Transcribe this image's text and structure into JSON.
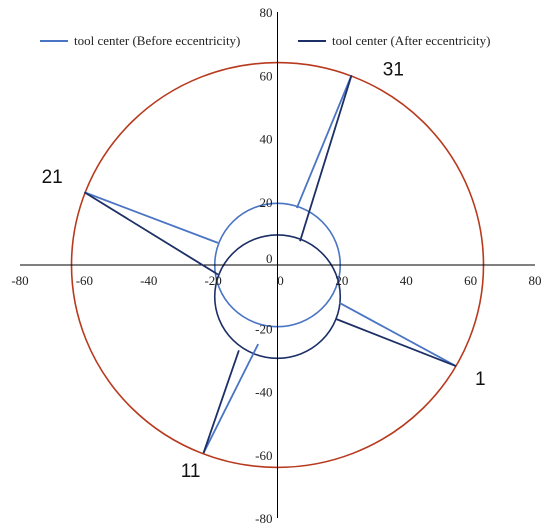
{
  "chart_data": {
    "type": "line",
    "xlim": [
      -80,
      80
    ],
    "ylim": [
      -80,
      80
    ],
    "x_ticks": [
      -80,
      -60,
      -40,
      -20,
      0,
      20,
      40,
      60,
      80
    ],
    "y_ticks": [
      80,
      60,
      40,
      20,
      0,
      -20,
      -40,
      -60,
      -80
    ],
    "grid": false,
    "legend": {
      "placement": "top"
    },
    "title": "",
    "xlabel": "",
    "ylabel": "",
    "series": [
      {
        "name": "tool center (Before eccentricity)",
        "color": "#4a74c4",
        "segments": [
          [
            [
              55.5,
              -32
            ],
            [
              19.3,
              -12
            ]
          ],
          [
            [
              -60,
              23
            ],
            [
              -18.5,
              7
            ]
          ],
          [
            [
              -23,
              -59.5
            ],
            [
              -6,
              -25
            ]
          ],
          [
            [
              23,
              60
            ],
            [
              6,
              18
            ]
          ]
        ]
      },
      {
        "name": "tool center (After eccentricity)",
        "color": "#1c2f66",
        "segments": [
          [
            [
              55.5,
              -32
            ],
            [
              18,
              -17
            ]
          ],
          [
            [
              -60,
              23
            ],
            [
              -18.5,
              -3
            ]
          ],
          [
            [
              -23,
              -59.5
            ],
            [
              -12,
              -27
            ]
          ],
          [
            [
              23,
              60
            ],
            [
              7,
              7.5
            ]
          ]
        ]
      }
    ],
    "shapes": [
      {
        "kind": "circle",
        "cx": 0,
        "cy": 0,
        "r": 64,
        "color": "#b83a1e"
      },
      {
        "kind": "circle",
        "cx": 0,
        "cy": 0,
        "r": 19.5,
        "color": "#4a74c4"
      },
      {
        "kind": "circle",
        "cx": 0,
        "cy": -10,
        "r": 19.5,
        "color": "#1c2f66"
      }
    ],
    "annotations": [
      {
        "text": "1",
        "x": 63,
        "y": -38
      },
      {
        "text": "11",
        "x": -27,
        "y": -67
      },
      {
        "text": "21",
        "x": -70,
        "y": 26
      },
      {
        "text": "31",
        "x": 36,
        "y": 60
      }
    ]
  }
}
